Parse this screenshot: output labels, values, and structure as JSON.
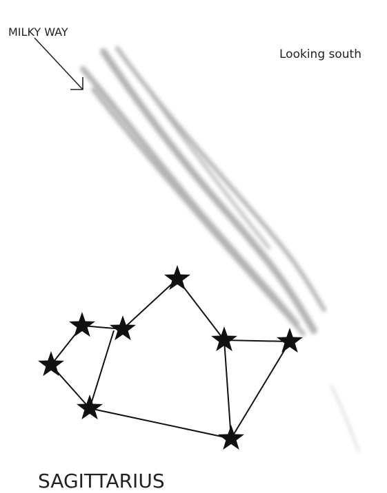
{
  "labels": {
    "milky_way": "MILKY WAY",
    "direction": "Looking south"
  },
  "constellation": {
    "name": "SAGITTARIUS"
  }
}
